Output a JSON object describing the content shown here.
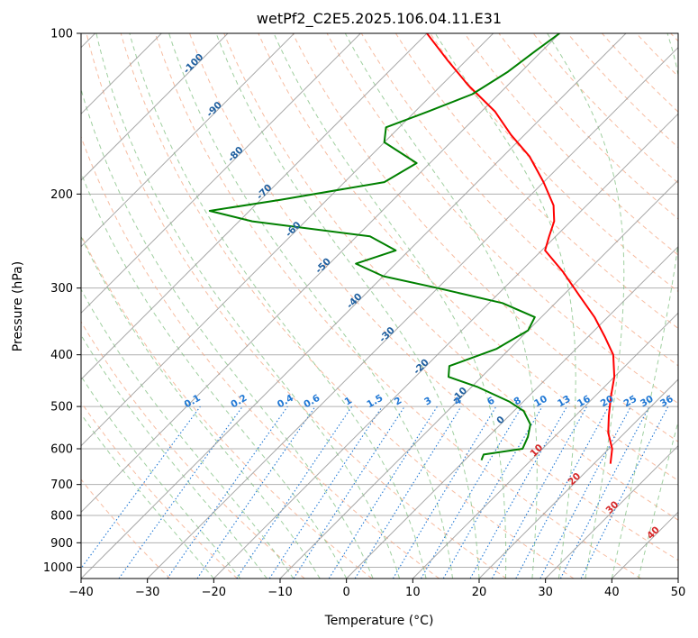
{
  "chart_data": {
    "type": "line",
    "title": "wetPf2_C2E5.2025.106.04.11.E31",
    "xlabel": "Temperature (°C)",
    "ylabel": "Pressure (hPa)",
    "xlim": [
      -40,
      50
    ],
    "ylim": [
      1050,
      100
    ],
    "y_scale": "log",
    "grid": true,
    "x_ticks": [
      -40,
      -30,
      -20,
      -10,
      0,
      10,
      20,
      30,
      40,
      50
    ],
    "y_ticks": [
      100,
      200,
      300,
      400,
      500,
      600,
      700,
      800,
      900,
      1000
    ],
    "skew_angle_deg": 45,
    "colors": {
      "temperature": "#ff0000",
      "dewpoint": "#008000",
      "isotherm": "#999999",
      "dry_adiabat": "#f4a582",
      "moist_adiabat": "#7fbf7f",
      "mixing_ratio": "#1f77d4",
      "dry_adiabat_label": "#1f5f9f",
      "isotherm_label": "#d62728"
    },
    "series": [
      {
        "key": "temperature",
        "values": [
          {
            "p": 640,
            "t": 22.5
          },
          {
            "p": 600,
            "t": 20.5
          },
          {
            "p": 560,
            "t": 17.5
          },
          {
            "p": 520,
            "t": 15.0
          },
          {
            "p": 480,
            "t": 12.5
          },
          {
            "p": 440,
            "t": 10.0
          },
          {
            "p": 400,
            "t": 6.5
          },
          {
            "p": 370,
            "t": 2.5
          },
          {
            "p": 340,
            "t": -2.0
          },
          {
            "p": 310,
            "t": -7.5
          },
          {
            "p": 280,
            "t": -13.5
          },
          {
            "p": 255,
            "t": -19.5
          },
          {
            "p": 240,
            "t": -21.0
          },
          {
            "p": 225,
            "t": -22.5
          },
          {
            "p": 210,
            "t": -25.0
          },
          {
            "p": 190,
            "t": -30.0
          },
          {
            "p": 170,
            "t": -36.0
          },
          {
            "p": 155,
            "t": -42.0
          },
          {
            "p": 140,
            "t": -48.0
          },
          {
            "p": 125,
            "t": -56.0
          },
          {
            "p": 112,
            "t": -63.0
          },
          {
            "p": 100,
            "t": -70.0
          }
        ]
      },
      {
        "key": "dewpoint",
        "values": [
          {
            "p": 630,
            "t": 2.5
          },
          {
            "p": 615,
            "t": 2.0
          },
          {
            "p": 600,
            "t": 7.0
          },
          {
            "p": 570,
            "t": 6.0
          },
          {
            "p": 540,
            "t": 4.5
          },
          {
            "p": 510,
            "t": 1.5
          },
          {
            "p": 490,
            "t": -2.0
          },
          {
            "p": 460,
            "t": -9.0
          },
          {
            "p": 440,
            "t": -15.0
          },
          {
            "p": 420,
            "t": -16.5
          },
          {
            "p": 390,
            "t": -12.0
          },
          {
            "p": 360,
            "t": -10.0
          },
          {
            "p": 340,
            "t": -11.0
          },
          {
            "p": 320,
            "t": -18.0
          },
          {
            "p": 300,
            "t": -30.0
          },
          {
            "p": 285,
            "t": -40.0
          },
          {
            "p": 270,
            "t": -46.0
          },
          {
            "p": 255,
            "t": -42.0
          },
          {
            "p": 240,
            "t": -48.0
          },
          {
            "p": 225,
            "t": -68.0
          },
          {
            "p": 215,
            "t": -76.0
          },
          {
            "p": 205,
            "t": -67.0
          },
          {
            "p": 190,
            "t": -54.0
          },
          {
            "p": 175,
            "t": -52.0
          },
          {
            "p": 160,
            "t": -60.0
          },
          {
            "p": 150,
            "t": -62.0
          },
          {
            "p": 140,
            "t": -58.0
          },
          {
            "p": 130,
            "t": -54.0
          },
          {
            "p": 118,
            "t": -52.0
          },
          {
            "p": 108,
            "t": -51.0
          },
          {
            "p": 100,
            "t": -50.0
          }
        ]
      }
    ],
    "dry_adiabat_labels": [
      "-100",
      "-90",
      "-80",
      "-70",
      "-60",
      "-50",
      "-40",
      "-30",
      "-20",
      "-10",
      "0"
    ],
    "dry_adiabat_label_points": [
      {
        "p": 115,
        "t": -100
      },
      {
        "p": 140,
        "t": -90
      },
      {
        "p": 170,
        "t": -80
      },
      {
        "p": 200,
        "t": -70
      },
      {
        "p": 235,
        "t": -60
      },
      {
        "p": 275,
        "t": -50
      },
      {
        "p": 320,
        "t": -40
      },
      {
        "p": 370,
        "t": -30
      },
      {
        "p": 425,
        "t": -20
      },
      {
        "p": 480,
        "t": -10
      },
      {
        "p": 535,
        "t": 0
      }
    ],
    "mixing_ratio_labels": [
      "0.1",
      "0.2",
      "0.4",
      "0.6",
      "1",
      "1.5",
      "2",
      "3",
      "4",
      "6",
      "8",
      "10",
      "13",
      "16",
      "20",
      "25",
      "30",
      "36"
    ],
    "mixing_ratio_label_temps": [
      -23,
      -16,
      -9,
      -5,
      0.5,
      4.5,
      8,
      12.5,
      17,
      22,
      26,
      29.5,
      33,
      36,
      39.5,
      43,
      45.5,
      48.5
    ],
    "isotherm_labels": [
      "10",
      "20",
      "30",
      "40"
    ],
    "isotherm_label_points": [
      {
        "p": 610,
        "t": 10
      },
      {
        "p": 690,
        "t": 20
      },
      {
        "p": 780,
        "t": 30
      },
      {
        "p": 870,
        "t": 40
      }
    ]
  }
}
